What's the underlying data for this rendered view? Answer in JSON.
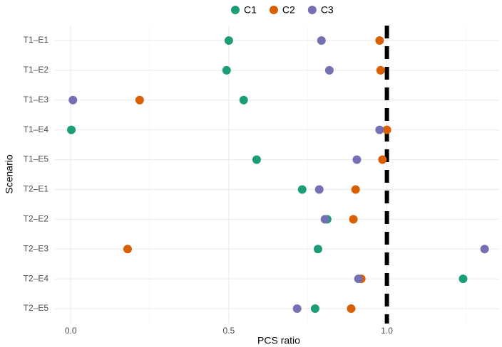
{
  "chart_data": {
    "type": "dot",
    "xlabel": "PCS ratio",
    "ylabel": "Scenario",
    "categories": [
      "T1–E1",
      "T1–E2",
      "T1–E3",
      "T1–E4",
      "T1–E5",
      "T2–E1",
      "T2–E2",
      "T2–E3",
      "T2–E4",
      "T2–E5"
    ],
    "series": [
      {
        "name": "C1",
        "color": "#1b9e77",
        "values": [
          0.5,
          0.493,
          0.547,
          0.002,
          0.588,
          0.732,
          0.811,
          0.782,
          1.241,
          0.773
        ]
      },
      {
        "name": "C2",
        "color": "#d95f02",
        "values": [
          0.977,
          0.98,
          0.218,
          1.0,
          0.986,
          0.901,
          0.894,
          0.18,
          0.919,
          0.887
        ]
      },
      {
        "name": "C3",
        "color": "#7570b3",
        "values": [
          0.793,
          0.818,
          0.007,
          0.977,
          0.905,
          0.786,
          0.804,
          1.309,
          0.91,
          0.716
        ]
      }
    ],
    "xlim": [
      -0.05,
      1.355
    ],
    "xticks": [
      {
        "value": 0,
        "label": "0.0"
      },
      0.5,
      {
        "value": 1,
        "label": "1.0"
      }
    ],
    "minor_xticks": [
      0.25,
      0.75,
      1.25
    ],
    "reference_line": 1,
    "grid": true,
    "legend": "top"
  }
}
